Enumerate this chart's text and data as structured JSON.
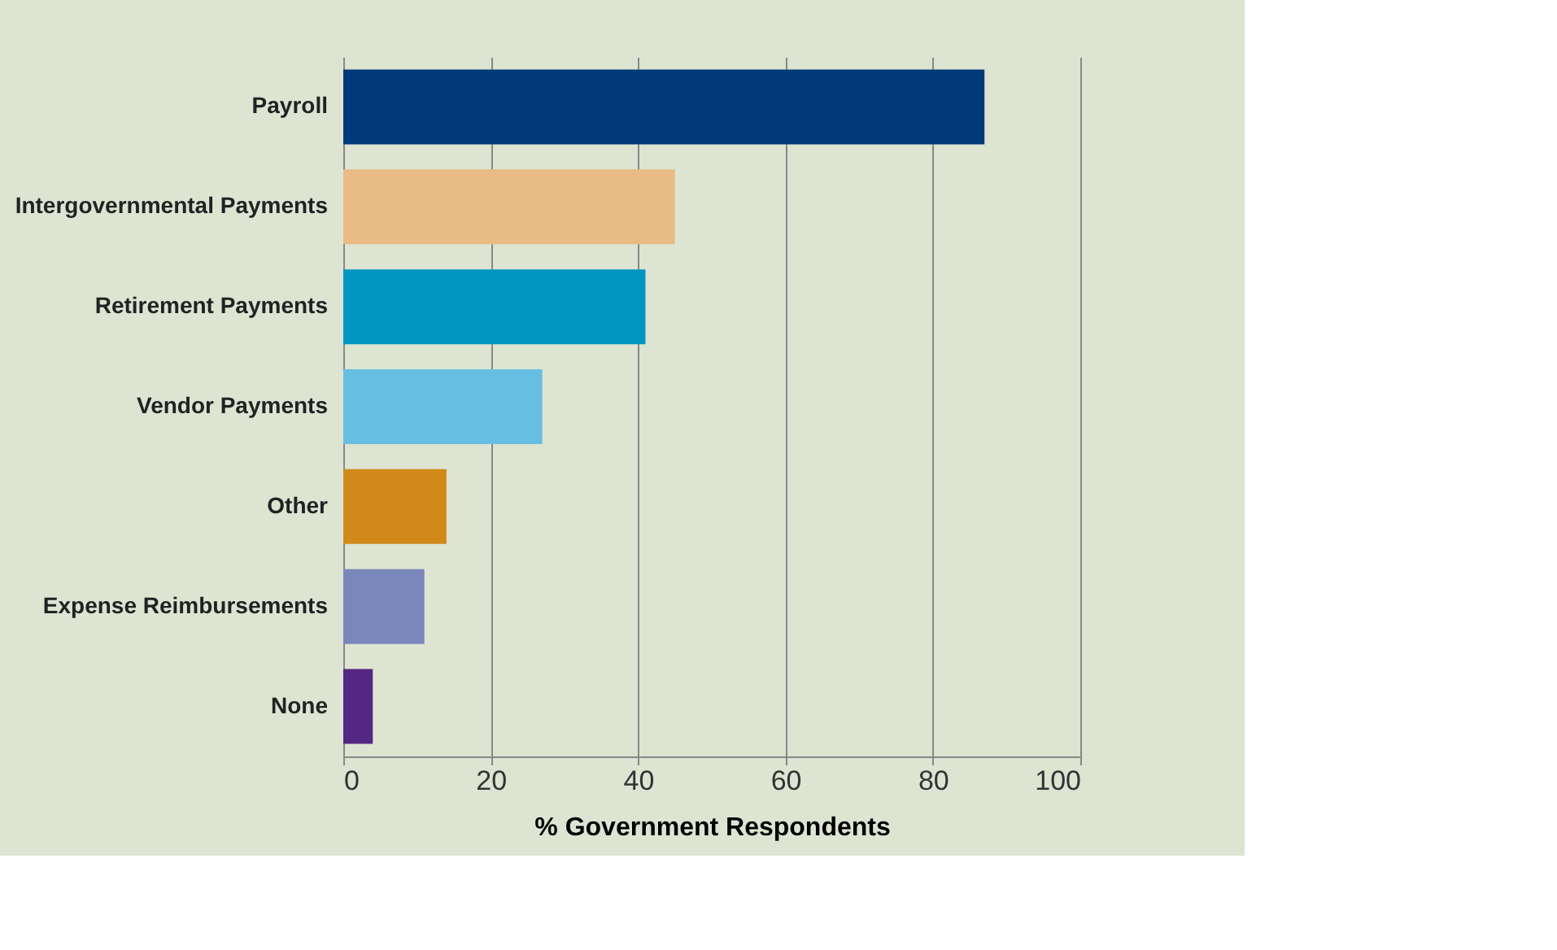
{
  "chart_data": {
    "type": "bar",
    "orientation": "horizontal",
    "xlabel": "% Government Respondents",
    "categories": [
      "Payroll",
      "Intergovernmental Payments",
      "Retirement Payments",
      "Vendor Payments",
      "Other",
      "Expense Reimbursements",
      "None"
    ],
    "values": [
      87,
      45,
      41,
      27,
      14,
      11,
      4
    ],
    "colors": [
      "#003a78",
      "#e8bc84",
      "#0096c3",
      "#66bfe2",
      "#d18a1a",
      "#7a87bb",
      "#542783"
    ],
    "xlim": [
      0,
      100
    ],
    "xticks": [
      0,
      20,
      40,
      60,
      80,
      100
    ],
    "grid": "x"
  }
}
